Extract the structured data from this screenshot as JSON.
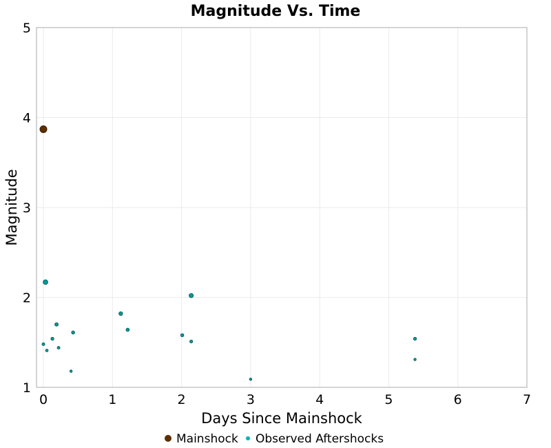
{
  "chart_data": {
    "type": "scatter",
    "title": "Magnitude Vs. Time",
    "xlabel": "Days Since Mainshock",
    "ylabel": "Magnitude",
    "xlim": [
      -0.1,
      7
    ],
    "ylim": [
      1,
      5
    ],
    "xticks": [
      "0",
      "1",
      "2",
      "3",
      "4",
      "5",
      "6",
      "7"
    ],
    "yticks": [
      "1",
      "2",
      "3",
      "4",
      "5"
    ],
    "grid": true,
    "legend_position": "bottom",
    "series": [
      {
        "name": "Mainshock",
        "color": "#5c2e00",
        "points": [
          {
            "x": 0.0,
            "y": 3.87
          }
        ]
      },
      {
        "name": "Observed Aftershocks",
        "color": "#009a9a",
        "points": [
          {
            "x": 0.03,
            "y": 2.17
          },
          {
            "x": 0.0,
            "y": 1.48
          },
          {
            "x": 0.05,
            "y": 1.41
          },
          {
            "x": 0.13,
            "y": 1.54
          },
          {
            "x": 0.19,
            "y": 1.7
          },
          {
            "x": 0.22,
            "y": 1.44
          },
          {
            "x": 0.4,
            "y": 1.18
          },
          {
            "x": 0.43,
            "y": 1.61
          },
          {
            "x": 1.12,
            "y": 1.82
          },
          {
            "x": 1.22,
            "y": 1.64
          },
          {
            "x": 2.01,
            "y": 1.58
          },
          {
            "x": 2.14,
            "y": 2.02
          },
          {
            "x": 2.14,
            "y": 1.51
          },
          {
            "x": 3.0,
            "y": 1.09
          },
          {
            "x": 5.38,
            "y": 1.54
          },
          {
            "x": 5.38,
            "y": 1.31
          }
        ]
      }
    ]
  }
}
